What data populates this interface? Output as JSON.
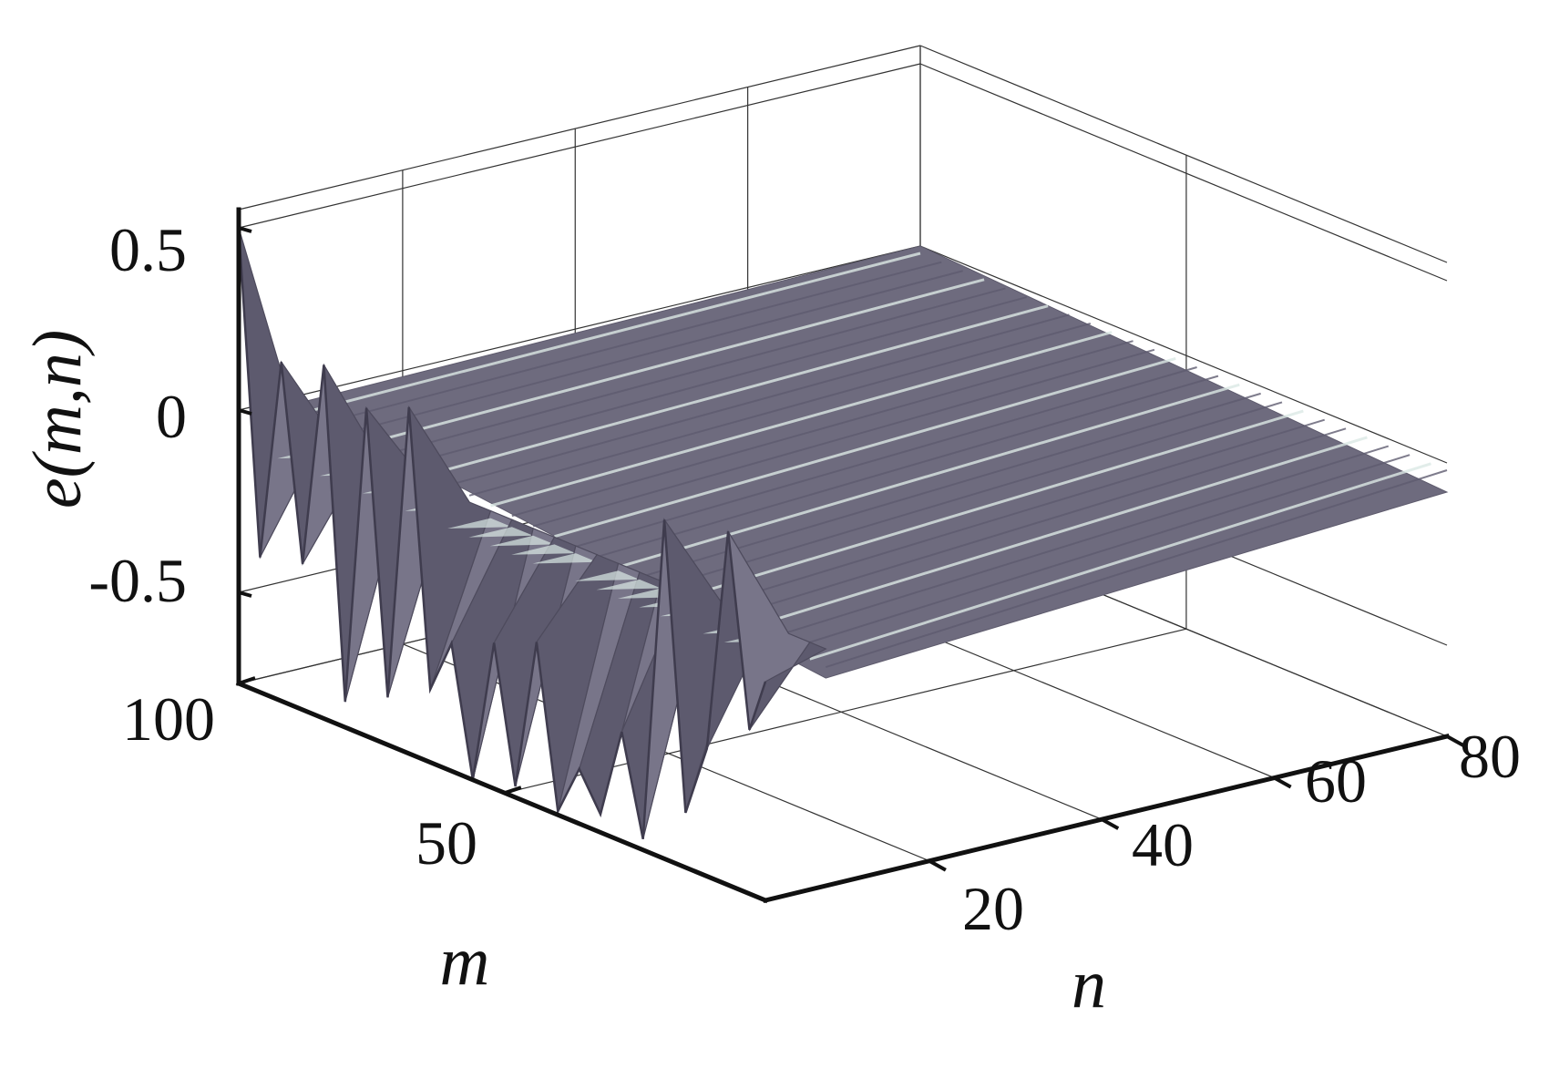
{
  "chart_data": {
    "type": "surface3d",
    "zlabel": "e(m,n)",
    "xlabel": "n",
    "ylabel": "m",
    "x_ticks": [
      "20",
      "40",
      "60",
      "80"
    ],
    "y_ticks": [
      "50",
      "100"
    ],
    "z_ticks": [
      "-0.5",
      "0",
      "0.5"
    ],
    "xlim": [
      1,
      80
    ],
    "ylim": [
      1,
      100
    ],
    "zlim": [
      -0.75,
      0.55
    ],
    "grid": true,
    "surface_color": "#6e6b7e",
    "highlight_color": "#dce9e5",
    "front_row_m": [
      100,
      96,
      92,
      88,
      84,
      80,
      76,
      72,
      68,
      64,
      60,
      56,
      52,
      48,
      44,
      40,
      36,
      32,
      28,
      24,
      20,
      16,
      12,
      8,
      4,
      1
    ],
    "front_row_e": [
      0.5,
      -0.38,
      0.18,
      -0.35,
      0.22,
      -0.68,
      0.15,
      -0.62,
      0.2,
      -0.55,
      -0.4,
      -0.75,
      -0.35,
      -0.72,
      -0.3,
      -0.74,
      -0.6,
      -0.7,
      -0.45,
      -0.72,
      0.18,
      -0.6,
      -0.4,
      0.22,
      -0.3,
      -0.15
    ]
  }
}
